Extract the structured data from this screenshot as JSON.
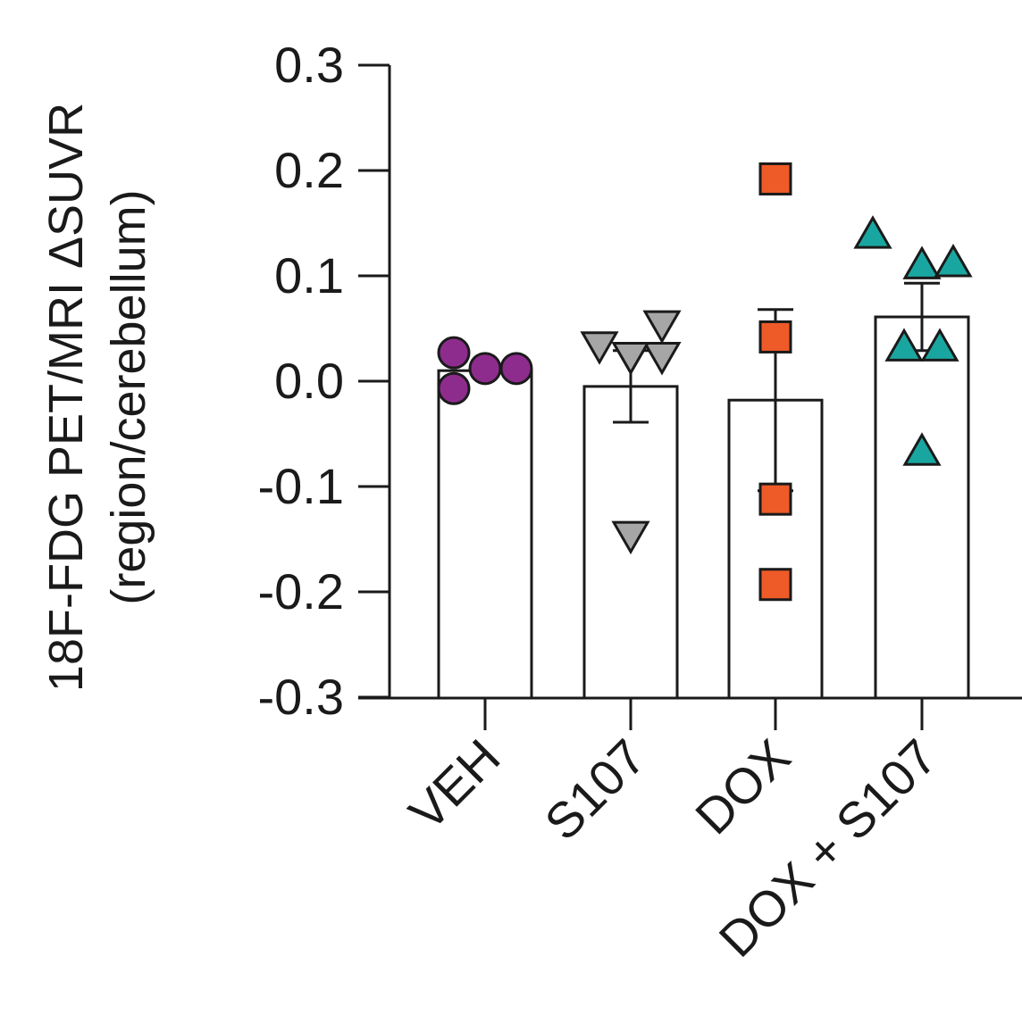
{
  "chart_data": {
    "type": "bar",
    "ylabel_line1": "18F-FDG PET/MRI ΔSUVR",
    "ylabel_line2": "(region/cerebellum)",
    "ylim": [
      -0.3,
      0.3
    ],
    "yticks": [
      0.3,
      0.2,
      0.1,
      0.0,
      -0.1,
      -0.2,
      -0.3
    ],
    "ytick_labels": [
      "0.3",
      "0.2",
      "0.1",
      "0.0",
      "-0.1",
      "-0.2",
      "-0.3"
    ],
    "categories": [
      "VEH",
      "S107",
      "DOX",
      "DOX + S107"
    ],
    "bars": [
      {
        "category": "VEH",
        "mean": 0.01,
        "sem": 0.0,
        "marker": "circle",
        "color": "#8e2c8e",
        "points": [
          0.027,
          0.012,
          0.012,
          -0.007
        ]
      },
      {
        "category": "S107",
        "mean": -0.005,
        "sem": 0.034,
        "marker": "triangle-down",
        "color": "#a6a6a6",
        "points": [
          0.035,
          0.055,
          0.025,
          0.025,
          0.025,
          -0.145
        ]
      },
      {
        "category": "DOX",
        "mean": -0.018,
        "sem": 0.086,
        "marker": "square",
        "color": "#ee5a28",
        "points": [
          0.192,
          0.042,
          -0.112,
          -0.193
        ]
      },
      {
        "category": "DOX + S107",
        "mean": 0.061,
        "sem": 0.032,
        "marker": "triangle-up",
        "color": "#1aa6a0",
        "points": [
          0.138,
          0.109,
          0.111,
          0.031,
          0.031,
          -0.068
        ]
      }
    ]
  }
}
